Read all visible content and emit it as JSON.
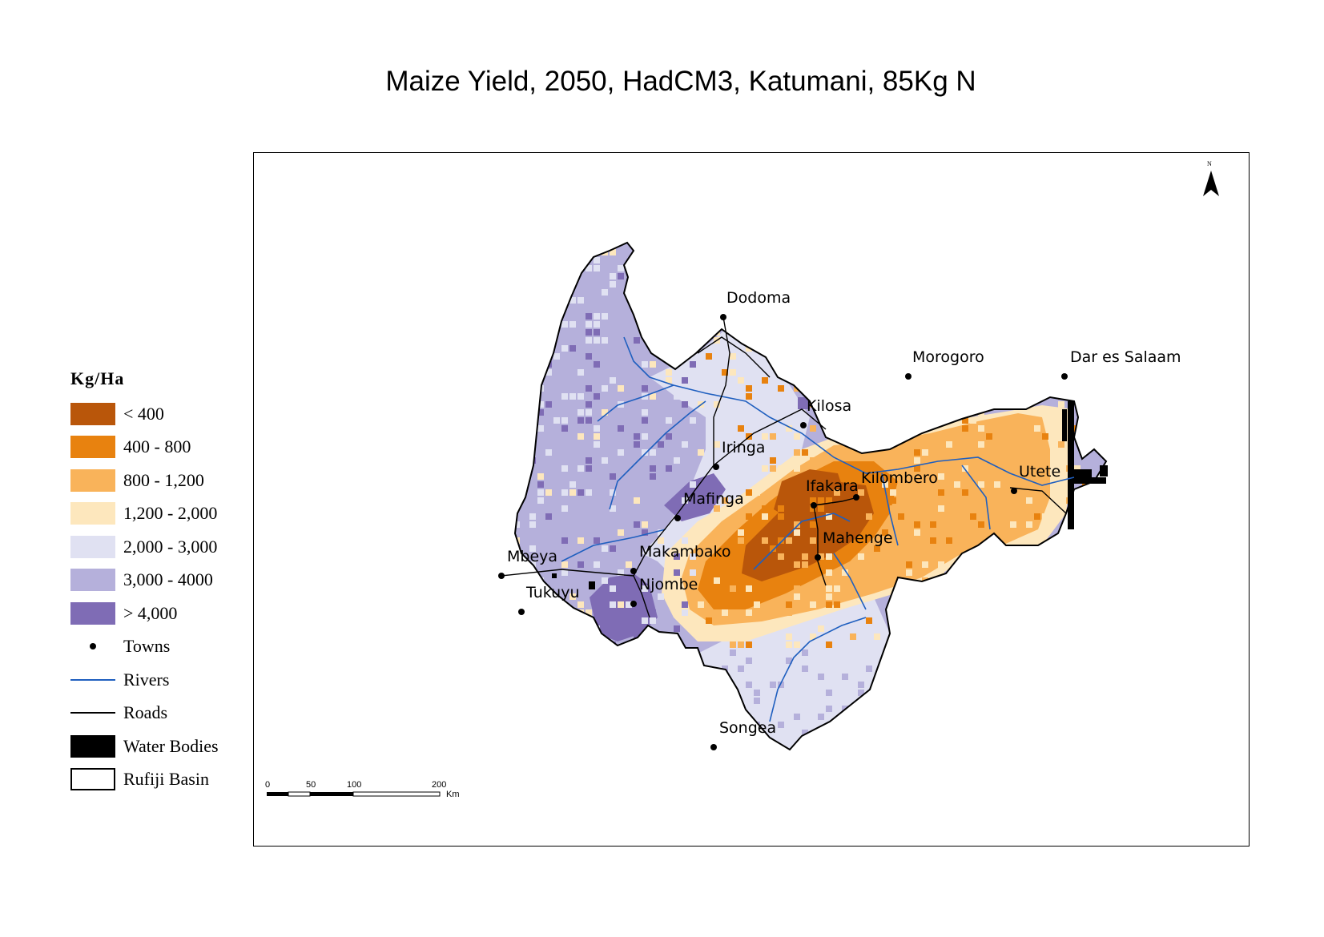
{
  "title": "Maize Yield, 2050, HadCM3, Katumani, 85Kg N",
  "legend": {
    "title": "Kg/Ha",
    "classes": [
      {
        "label": "< 400",
        "color": "#b9560a"
      },
      {
        "label": "400 - 800",
        "color": "#e8820f"
      },
      {
        "label": "800 - 1,200",
        "color": "#f9b35a"
      },
      {
        "label": "1,200 - 2,000",
        "color": "#fde7bd"
      },
      {
        "label": "2,000 - 3,000",
        "color": "#e0e1f2"
      },
      {
        "label": "3,000 - 4000",
        "color": "#b5b0db"
      },
      {
        "label": "> 4,000",
        "color": "#7f6cb5"
      }
    ],
    "towns_label": "Towns",
    "rivers_label": "Rivers",
    "roads_label": "Roads",
    "water_label": "Water Bodies",
    "basin_label": "Rufiji Basin"
  },
  "towns": [
    {
      "name": "Dodoma"
    },
    {
      "name": "Morogoro"
    },
    {
      "name": "Dar es Salaam"
    },
    {
      "name": "Kilosa"
    },
    {
      "name": "Iringa"
    },
    {
      "name": "Mafinga"
    },
    {
      "name": "Ifakara"
    },
    {
      "name": "Kilombero"
    },
    {
      "name": "Utete"
    },
    {
      "name": "Mahenge"
    },
    {
      "name": "Mbeya"
    },
    {
      "name": "Makambako"
    },
    {
      "name": "Tukuyu"
    },
    {
      "name": "Njombe"
    },
    {
      "name": "Songea"
    }
  ],
  "north_arrow": "N",
  "scale": {
    "ticks": [
      "0",
      "50",
      "100",
      "200"
    ],
    "unit": "Km"
  },
  "colors": {
    "river": "#1f5fbf",
    "road": "#000000",
    "water": "#000000",
    "basin_outline": "#000000"
  }
}
